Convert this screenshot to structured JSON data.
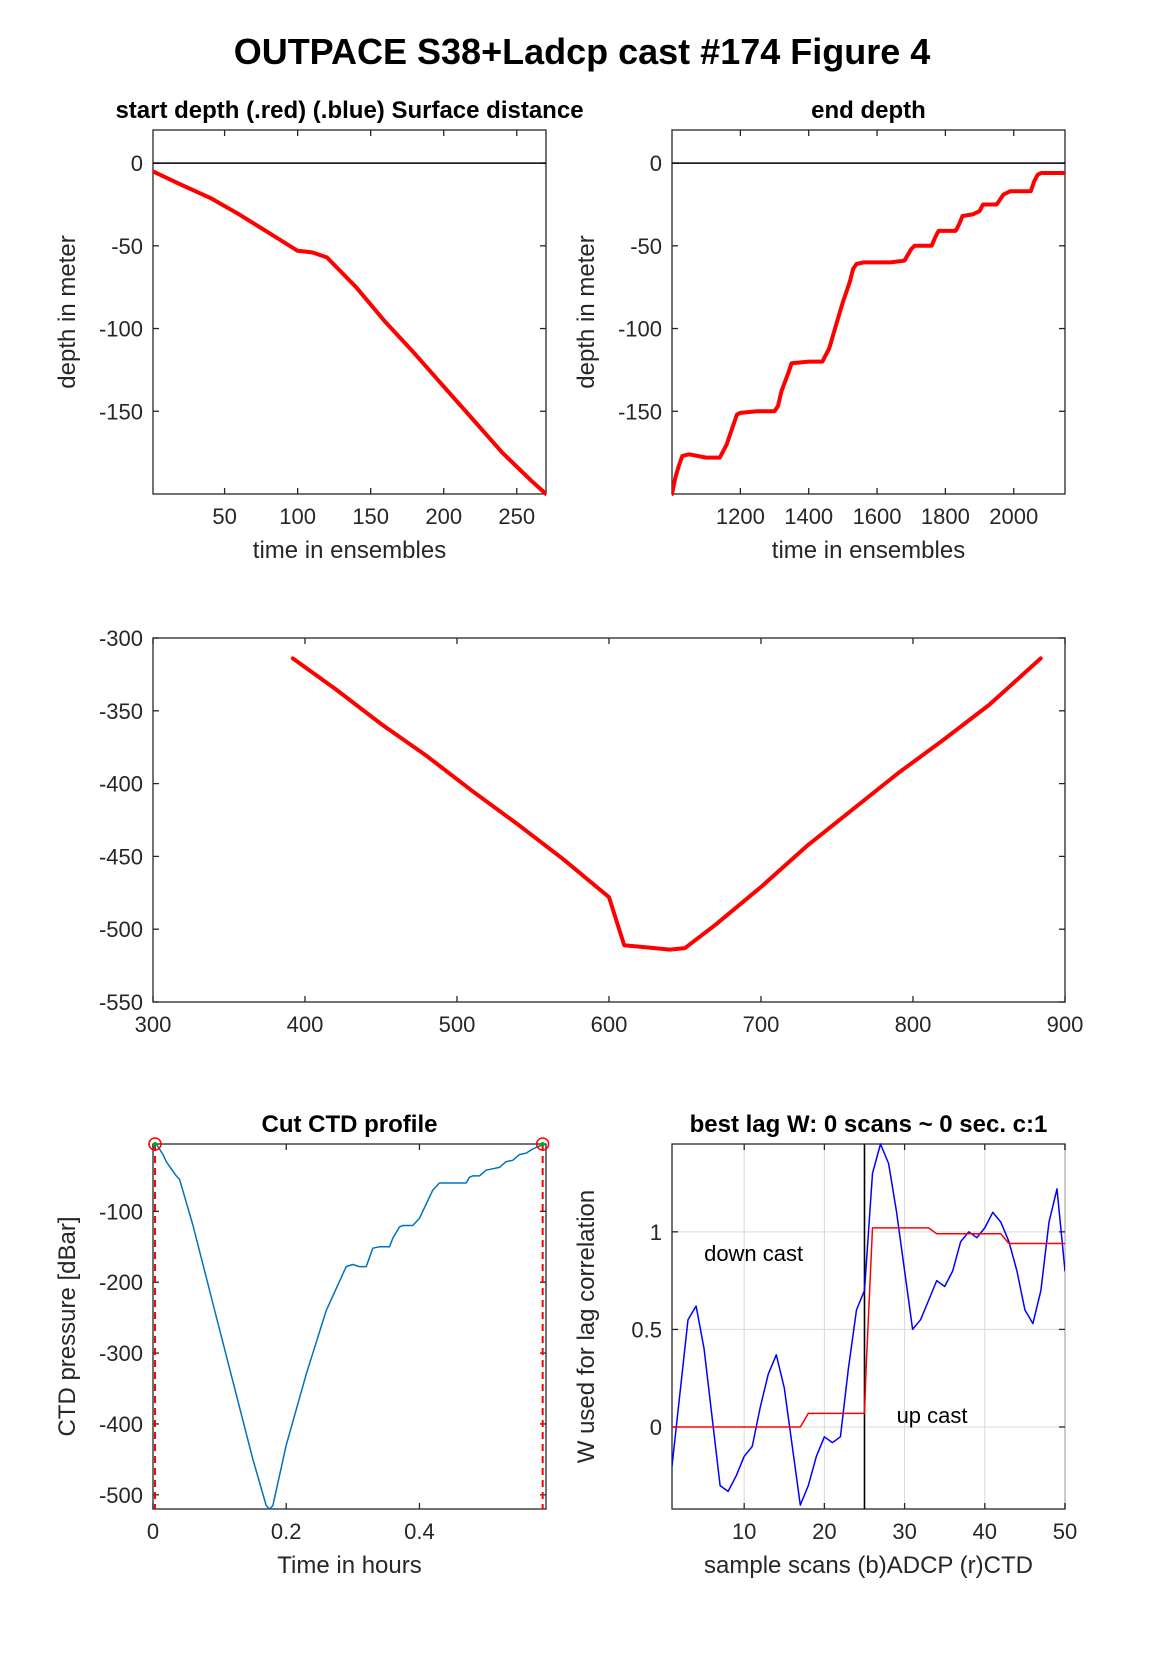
{
  "figure": {
    "suptitle": "OUTPACE S38+Ladcp cast #174   Figure 4"
  },
  "colors": {
    "red": "#ff0000",
    "blue": "#0000ff",
    "ctd_blue": "#0072bd",
    "black": "#000000",
    "marker_green": "#00b000"
  },
  "chart_data": [
    {
      "id": "start",
      "type": "line",
      "title": "start depth (.red) (.blue) Surface distance",
      "xlabel": "time in ensembles",
      "ylabel": "depth in meter",
      "xlim": [
        1,
        270
      ],
      "ylim": [
        -200,
        20
      ],
      "xticks": [
        50,
        100,
        150,
        200,
        250
      ],
      "yticks": [
        0,
        -50,
        -100,
        -150
      ],
      "grid": false,
      "hline": 0,
      "series": [
        {
          "color": "red",
          "width": 4,
          "x": [
            1,
            20,
            40,
            60,
            80,
            100,
            110,
            120,
            140,
            160,
            180,
            200,
            220,
            240,
            260,
            270
          ],
          "y": [
            -5,
            -13,
            -21,
            -31,
            -42,
            -53,
            -54,
            -57,
            -75,
            -96,
            -115,
            -135,
            -155,
            -175,
            -192,
            -200
          ]
        }
      ]
    },
    {
      "id": "end",
      "type": "line",
      "title": "end depth",
      "xlabel": "time in ensembles",
      "ylabel": "depth in meter",
      "xlim": [
        1000,
        2150
      ],
      "ylim": [
        -200,
        20
      ],
      "xticks": [
        1200,
        1400,
        1600,
        1800,
        2000
      ],
      "yticks": [
        0,
        -50,
        -100,
        -150
      ],
      "grid": false,
      "hline": 0,
      "series": [
        {
          "color": "red",
          "width": 4,
          "x": [
            1000,
            1010,
            1020,
            1030,
            1050,
            1100,
            1140,
            1160,
            1180,
            1190,
            1200,
            1250,
            1300,
            1310,
            1320,
            1340,
            1350,
            1400,
            1440,
            1460,
            1480,
            1500,
            1520,
            1530,
            1540,
            1560,
            1640,
            1680,
            1700,
            1710,
            1760,
            1770,
            1780,
            1830,
            1840,
            1850,
            1880,
            1900,
            1910,
            1950,
            1970,
            1990,
            2050,
            2060,
            2070,
            2080,
            2100,
            2150
          ],
          "y": [
            -200,
            -190,
            -183,
            -177,
            -176,
            -178,
            -178,
            -170,
            -158,
            -152,
            -151,
            -150,
            -150,
            -147,
            -138,
            -127,
            -121,
            -120,
            -120,
            -112,
            -98,
            -84,
            -72,
            -64,
            -61,
            -60,
            -60,
            -59,
            -52,
            -50,
            -50,
            -45,
            -41,
            -41,
            -37,
            -32,
            -31,
            -29,
            -25,
            -25,
            -19,
            -17,
            -17,
            -11,
            -7,
            -6,
            -6,
            -6
          ]
        }
      ]
    },
    {
      "id": "mid",
      "type": "line",
      "title": "",
      "xlabel": "",
      "ylabel": "",
      "xlim": [
        300,
        900
      ],
      "ylim": [
        -550,
        -300
      ],
      "xticks": [
        300,
        400,
        500,
        600,
        700,
        800,
        900
      ],
      "yticks": [
        -300,
        -350,
        -400,
        -450,
        -500,
        -550
      ],
      "grid": false,
      "series": [
        {
          "color": "red",
          "width": 4,
          "x": [
            392,
            420,
            450,
            480,
            510,
            540,
            570,
            600,
            610,
            630,
            640,
            650,
            670,
            700,
            730,
            760,
            790,
            820,
            850,
            884
          ],
          "y": [
            -314,
            -335,
            -359,
            -381,
            -405,
            -428,
            -452,
            -478,
            -511,
            -513,
            -514,
            -513,
            -497,
            -471,
            -443,
            -418,
            -393,
            -370,
            -346,
            -314
          ]
        }
      ]
    },
    {
      "id": "ctd",
      "type": "line",
      "title": "Cut CTD profile",
      "xlabel": "Time in hours",
      "ylabel": "CTD pressure [dBar]",
      "xlim": [
        0,
        0.59
      ],
      "ylim": [
        -520,
        -5
      ],
      "xticks": [
        0,
        0.2,
        0.4
      ],
      "xticklabels": [
        "0",
        "0.2",
        "0.4"
      ],
      "yticks": [
        -100,
        -200,
        -300,
        -400,
        -500
      ],
      "grid": false,
      "series": [
        {
          "color": "ctd_blue",
          "width": 1.5,
          "x": [
            0,
            0.005,
            0.015,
            0.02,
            0.035,
            0.04,
            0.06,
            0.09,
            0.12,
            0.15,
            0.17,
            0.175,
            0.18,
            0.2,
            0.23,
            0.26,
            0.29,
            0.3,
            0.31,
            0.32,
            0.325,
            0.33,
            0.34,
            0.355,
            0.36,
            0.37,
            0.375,
            0.39,
            0.4,
            0.41,
            0.42,
            0.43,
            0.45,
            0.47,
            0.475,
            0.48,
            0.49,
            0.5,
            0.51,
            0.52,
            0.53,
            0.54,
            0.55,
            0.56,
            0.57,
            0.58,
            0.59
          ],
          "y": [
            -10,
            -5,
            -20,
            -30,
            -50,
            -55,
            -120,
            -230,
            -340,
            -450,
            -515,
            -520,
            -515,
            -430,
            -330,
            -240,
            -178,
            -175,
            -178,
            -178,
            -165,
            -152,
            -150,
            -150,
            -138,
            -122,
            -120,
            -120,
            -110,
            -90,
            -70,
            -60,
            -60,
            -60,
            -52,
            -50,
            -50,
            -42,
            -40,
            -38,
            -30,
            -28,
            -20,
            -18,
            -12,
            -8,
            -5
          ]
        }
      ],
      "markers": [
        {
          "x": 0.003,
          "y": -5,
          "color": "red"
        },
        {
          "x": 0.585,
          "y": -5,
          "color": "red"
        }
      ],
      "vlines": [
        {
          "x": 0.003,
          "color": "red",
          "style": "dashed"
        },
        {
          "x": 0.585,
          "color": "red",
          "style": "dashed"
        }
      ]
    },
    {
      "id": "lag",
      "type": "line",
      "title": "best lag W: 0 scans ~ 0 sec.  c:1",
      "xlabel": "sample scans (b)ADCP (r)CTD",
      "ylabel": "W used for lag correlation",
      "xlim": [
        1,
        50
      ],
      "ylim": [
        -0.42,
        1.45
      ],
      "xticks": [
        10,
        20,
        30,
        40,
        50
      ],
      "yticks": [
        0,
        0.5,
        1
      ],
      "yticklabels": [
        "0",
        "0.5",
        "1"
      ],
      "grid": true,
      "vlines": [
        {
          "x": 25,
          "color": "black",
          "style": "solid"
        }
      ],
      "annotations": [
        {
          "text": "down cast",
          "x": 5,
          "y": 0.85
        },
        {
          "text": "up cast",
          "x": 29,
          "y": 0.02
        }
      ],
      "series": [
        {
          "name": "ADCP",
          "color": "blue",
          "width": 1.5,
          "x": [
            1,
            3,
            4,
            5,
            6,
            7,
            8,
            9,
            10,
            11,
            12,
            13,
            14,
            15,
            16,
            17,
            18,
            19,
            20,
            21,
            22,
            23,
            24,
            25,
            26,
            27,
            28,
            29,
            30,
            31,
            32,
            33,
            34,
            35,
            36,
            37,
            38,
            39,
            40,
            41,
            42,
            43,
            44,
            45,
            46,
            47,
            48,
            49,
            50
          ],
          "y": [
            -0.2,
            0.55,
            0.62,
            0.4,
            0.05,
            -0.3,
            -0.33,
            -0.25,
            -0.15,
            -0.1,
            0.1,
            0.27,
            0.37,
            0.2,
            -0.1,
            -0.4,
            -0.3,
            -0.15,
            -0.05,
            -0.08,
            -0.05,
            0.3,
            0.6,
            0.7,
            1.3,
            1.45,
            1.35,
            1.1,
            0.8,
            0.5,
            0.55,
            0.65,
            0.75,
            0.72,
            0.8,
            0.95,
            1.0,
            0.97,
            1.02,
            1.1,
            1.05,
            0.95,
            0.8,
            0.6,
            0.53,
            0.7,
            1.05,
            1.22,
            0.8
          ]
        },
        {
          "name": "CTD",
          "color": "red",
          "width": 1.5,
          "x": [
            1,
            9,
            17,
            18,
            25,
            25.2,
            26,
            33,
            34,
            42,
            43,
            50
          ],
          "y": [
            0,
            0,
            0,
            0.07,
            0.07,
            0.3,
            1.02,
            1.02,
            0.99,
            0.99,
            0.94,
            0.94
          ]
        }
      ]
    }
  ]
}
